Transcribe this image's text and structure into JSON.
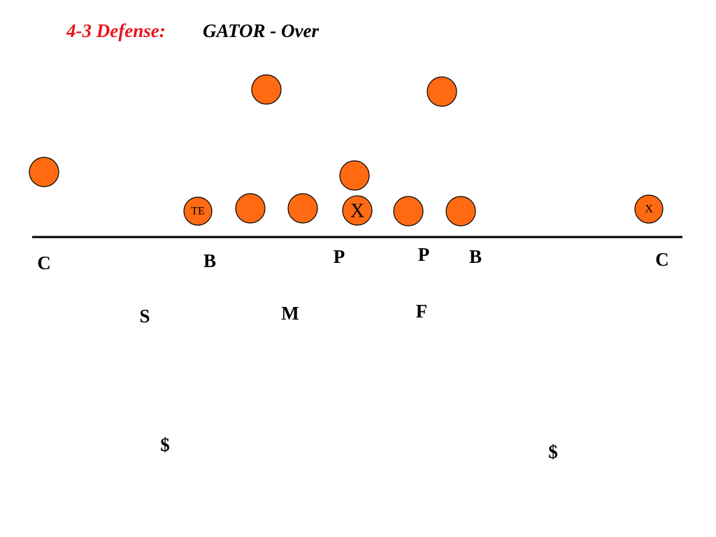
{
  "title": {
    "prefix": "4-3 Defense:",
    "name": "GATOR - Over"
  },
  "offense": {
    "labels": [
      "TE",
      "X",
      "X"
    ]
  },
  "defense": [
    "C",
    "B",
    "P",
    "P",
    "B",
    "C",
    "S",
    "M",
    "F",
    "$",
    "$"
  ]
}
